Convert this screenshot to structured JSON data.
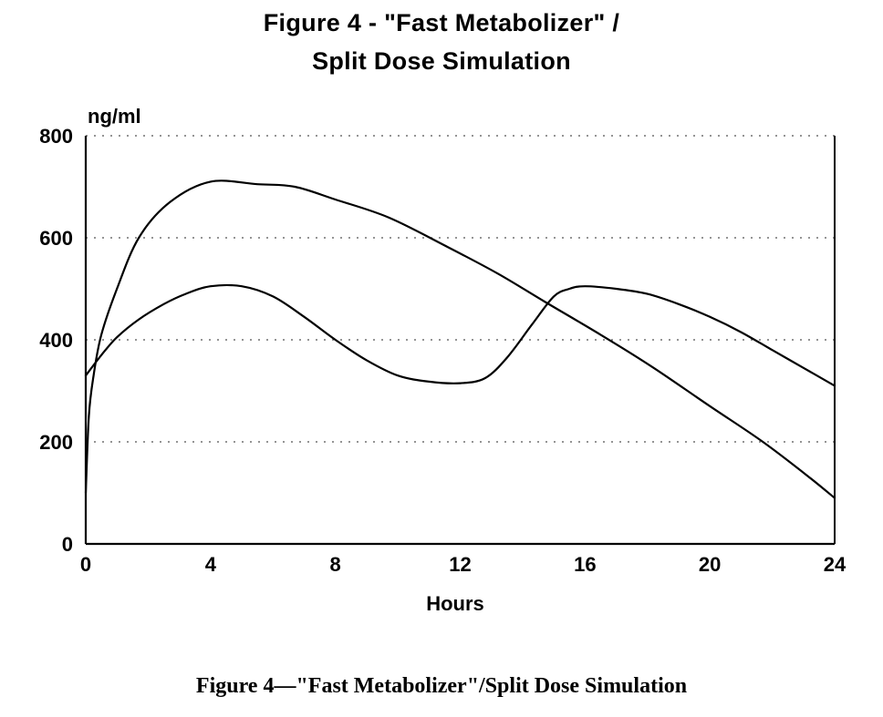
{
  "chart_data": {
    "type": "line",
    "title_line_1": "Figure 4  -  \"Fast Metabolizer\" /",
    "title_line_2": "Split Dose Simulation",
    "ylabel": "ng/ml",
    "xlabel": "Hours",
    "xlim": [
      0,
      24
    ],
    "ylim": [
      0,
      800
    ],
    "xticks": [
      0,
      4,
      8,
      12,
      16,
      20,
      24
    ],
    "yticks": [
      0,
      200,
      400,
      600,
      800
    ],
    "grid": "dotted horizontal",
    "legend": "none",
    "line_color": "#000000",
    "series": [
      {
        "x": [
          0,
          0.1,
          0.25,
          0.5,
          1,
          1.7,
          2.7,
          4,
          5.5,
          6.7,
          8,
          9.7,
          11.5,
          13.2,
          14.7,
          16.5,
          18.2,
          20,
          21.7,
          23.2,
          24
        ],
        "y": [
          100,
          250,
          330,
          410,
          500,
          600,
          670,
          710,
          705,
          700,
          675,
          640,
          585,
          530,
          475,
          410,
          345,
          270,
          200,
          130,
          90
        ]
      },
      {
        "x": [
          0,
          0.5,
          1,
          1.7,
          2.5,
          3.2,
          4,
          5,
          6,
          7,
          8,
          9,
          10,
          11,
          12,
          12.8,
          13.5,
          14.3,
          15,
          15.5,
          16,
          17,
          18,
          19,
          20,
          21,
          22,
          23,
          24
        ],
        "y": [
          330,
          370,
          405,
          440,
          470,
          490,
          505,
          505,
          485,
          445,
          400,
          360,
          330,
          318,
          315,
          325,
          365,
          430,
          485,
          500,
          505,
          500,
          490,
          470,
          445,
          415,
          380,
          345,
          310
        ]
      }
    ]
  },
  "caption": "Figure 4—\"Fast Metabolizer\"/Split Dose Simulation"
}
